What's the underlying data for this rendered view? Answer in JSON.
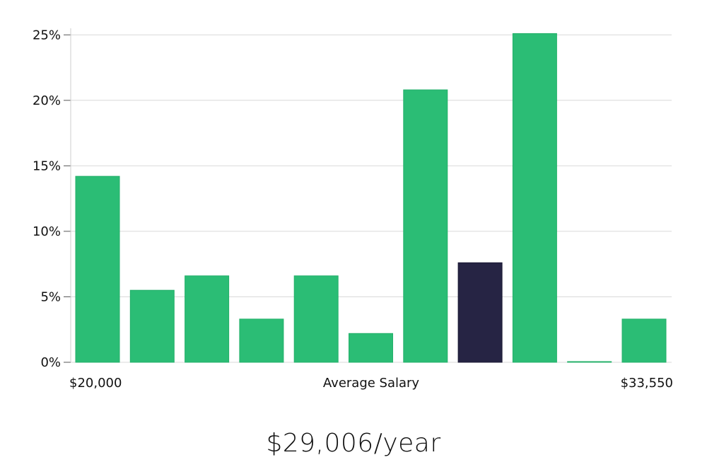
{
  "chart_data": {
    "type": "bar",
    "y_tick_labels": [
      "0%",
      "5%",
      "10%",
      "15%",
      "20%",
      "25%"
    ],
    "ylim": [
      0,
      25.5
    ],
    "values": [
      14.2,
      5.5,
      6.6,
      3.3,
      6.6,
      2.2,
      20.8,
      7.6,
      25.1,
      0.05,
      3.3
    ],
    "highlight_index": 7,
    "x_min_label": "$20,000",
    "xlabel": "Average Salary",
    "x_max_label": "$33,550",
    "grid": true,
    "colors": {
      "bar": "#2bbd75",
      "highlight": "#262444",
      "grid": "#d9d9d9",
      "axis": "#cccccc"
    }
  },
  "summary": {
    "salary_text": "$29,006/year"
  }
}
